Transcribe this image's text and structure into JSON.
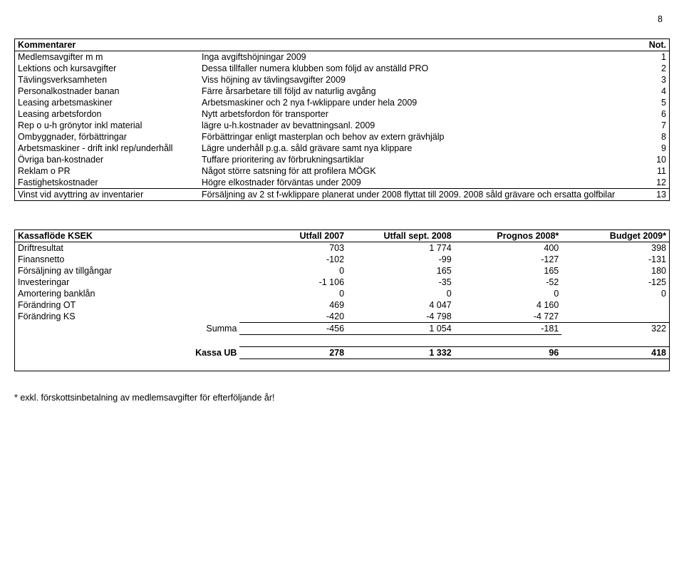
{
  "pageNumber": "8",
  "block1": {
    "title": "Kommentarer",
    "notLabel": "Not.",
    "rows": [
      {
        "label": "Medlemsavgifter m m",
        "text": "Inga avgiftshöjningar 2009",
        "note": "1"
      },
      {
        "label": "Lektions och kursavgifter",
        "text": "Dessa tillfaller numera klubben som följd av anställd PRO",
        "note": "2"
      },
      {
        "label": "Tävlingsverksamheten",
        "text": "Viss höjning av tävlingsavgifter 2009",
        "note": "3"
      },
      {
        "label": "Personalkostnader banan",
        "text": "Färre årsarbetare till följd av naturlig avgång",
        "note": "4"
      },
      {
        "label": "Leasing arbetsmaskiner",
        "text": "Arbetsmaskiner och 2 nya f-wklippare under hela 2009",
        "note": "5"
      },
      {
        "label": "Leasing arbetsfordon",
        "text": "Nytt arbetsfordon för transporter",
        "note": "6"
      },
      {
        "label": "Rep o u-h grönytor inkl material",
        "text": "lägre u-h.kostnader av bevattningsanl. 2009",
        "note": "7"
      },
      {
        "label": "Ombyggnader, förbättringar",
        "text": "Förbättringar enligt masterplan och behov av extern grävhjälp",
        "note": "8"
      },
      {
        "label": "Arbetsmaskiner - drift inkl rep/underhåll",
        "text": "Lägre underhåll p.g.a. såld grävare samt nya klippare",
        "note": "9"
      },
      {
        "label": "Övriga ban-kostnader",
        "text": "Tuffare prioritering av förbrukningsartiklar",
        "note": "10"
      },
      {
        "label": "Reklam o PR",
        "text": "Något större satsning för att profilera MÖGK",
        "note": "11"
      },
      {
        "label": "Fastighetskostnader",
        "text": "Högre elkostnader förväntas under 2009",
        "note": "12"
      },
      {
        "label": "Vinst vid avyttring av inventarier",
        "text": "Försäljning av 2 st f-wklippare planerat under 2008 flyttat till 2009. 2008 såld grävare och ersatta golfbilar",
        "note": "13"
      }
    ]
  },
  "block2": {
    "headers": [
      "Kassaflöde KSEK",
      "Utfall 2007",
      "Utfall sept. 2008",
      "Prognos 2008*",
      "Budget 2009*"
    ],
    "rows": [
      {
        "label": "Driftresultat",
        "v": [
          "703",
          "1 774",
          "400",
          "398"
        ]
      },
      {
        "label": "Finansnetto",
        "v": [
          "-102",
          "-99",
          "-127",
          "-131"
        ]
      },
      {
        "label": "Försäljning av tillgångar",
        "v": [
          "0",
          "165",
          "165",
          "180"
        ]
      },
      {
        "label": "Investeringar",
        "v": [
          "-1 106",
          "-35",
          "-52",
          "-125"
        ]
      },
      {
        "label": "Amortering banklån",
        "v": [
          "0",
          "0",
          "0",
          "0"
        ]
      },
      {
        "label": "Förändring OT",
        "v": [
          "469",
          "4 047",
          "4 160",
          ""
        ]
      },
      {
        "label": "Förändring KS",
        "v": [
          "-420",
          "-4 798",
          "-4 727",
          ""
        ]
      }
    ],
    "sumLabel": "Summa",
    "sum": [
      "-456",
      "1 054",
      "-181",
      "322"
    ],
    "kassaLabel": "Kassa UB",
    "kassa": [
      "278",
      "1 332",
      "96",
      "418"
    ]
  },
  "footnote": "* exkl. förskottsinbetalning av medlemsavgifter för efterföljande år!"
}
